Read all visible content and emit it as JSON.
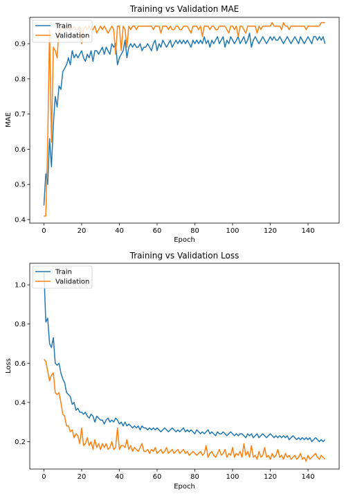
{
  "chart_data": [
    {
      "type": "line",
      "title": "Training vs Validation MAE",
      "xlabel": "Epoch",
      "ylabel": "MAE",
      "xlim": [
        -7.5,
        156.5
      ],
      "ylim": [
        0.39,
        0.975
      ],
      "xticks": [
        0,
        20,
        40,
        60,
        80,
        100,
        120,
        140
      ],
      "yticks": [
        0.4,
        0.5,
        0.6,
        0.7,
        0.8,
        0.9
      ],
      "ytick_labels": [
        "0.4",
        "0.5",
        "0.6",
        "0.7",
        "0.8",
        "0.9"
      ],
      "legend": "upper-left",
      "grid": false,
      "series": [
        {
          "name": "Train",
          "color": "#1f77b4",
          "values": [
            0.44,
            0.53,
            0.5,
            0.63,
            0.55,
            0.67,
            0.75,
            0.72,
            0.78,
            0.77,
            0.82,
            0.83,
            0.84,
            0.86,
            0.84,
            0.88,
            0.86,
            0.87,
            0.86,
            0.87,
            0.88,
            0.86,
            0.85,
            0.87,
            0.86,
            0.88,
            0.85,
            0.88,
            0.88,
            0.87,
            0.88,
            0.89,
            0.87,
            0.89,
            0.88,
            0.87,
            0.9,
            0.89,
            0.9,
            0.84,
            0.86,
            0.87,
            0.88,
            0.91,
            0.86,
            0.89,
            0.9,
            0.89,
            0.9,
            0.89,
            0.89,
            0.9,
            0.88,
            0.89,
            0.89,
            0.9,
            0.89,
            0.88,
            0.9,
            0.91,
            0.88,
            0.9,
            0.89,
            0.91,
            0.9,
            0.89,
            0.9,
            0.91,
            0.89,
            0.9,
            0.91,
            0.9,
            0.91,
            0.9,
            0.91,
            0.9,
            0.91,
            0.9,
            0.89,
            0.91,
            0.9,
            0.91,
            0.9,
            0.91,
            0.9,
            0.92,
            0.9,
            0.91,
            0.89,
            0.91,
            0.9,
            0.91,
            0.92,
            0.9,
            0.91,
            0.92,
            0.89,
            0.91,
            0.9,
            0.92,
            0.91,
            0.9,
            0.91,
            0.92,
            0.9,
            0.91,
            0.92,
            0.9,
            0.91,
            0.93,
            0.89,
            0.91,
            0.92,
            0.91,
            0.9,
            0.91,
            0.92,
            0.91,
            0.9,
            0.91,
            0.92,
            0.91,
            0.92,
            0.91,
            0.91,
            0.92,
            0.91,
            0.9,
            0.91,
            0.92,
            0.91,
            0.9,
            0.91,
            0.92,
            0.91,
            0.9,
            0.92,
            0.91,
            0.9,
            0.91,
            0.92,
            0.91,
            0.9,
            0.92,
            0.92,
            0.91,
            0.92,
            0.91,
            0.92,
            0.9
          ]
        },
        {
          "name": "Validation",
          "color": "#ff7f0e",
          "values": [
            0.41,
            0.41,
            0.62,
            0.94,
            0.62,
            0.89,
            0.88,
            0.86,
            0.94,
            0.94,
            0.95,
            0.94,
            0.94,
            0.95,
            0.94,
            0.94,
            0.95,
            0.94,
            0.94,
            0.95,
            0.9,
            0.94,
            0.95,
            0.94,
            0.95,
            0.94,
            0.94,
            0.95,
            0.93,
            0.94,
            0.95,
            0.94,
            0.95,
            0.94,
            0.93,
            0.94,
            0.95,
            0.94,
            0.87,
            0.95,
            0.95,
            0.88,
            0.95,
            0.94,
            0.89,
            0.95,
            0.94,
            0.95,
            0.95,
            0.94,
            0.95,
            0.95,
            0.95,
            0.95,
            0.95,
            0.95,
            0.95,
            0.95,
            0.94,
            0.95,
            0.95,
            0.95,
            0.93,
            0.95,
            0.95,
            0.95,
            0.94,
            0.95,
            0.94,
            0.94,
            0.95,
            0.95,
            0.94,
            0.94,
            0.95,
            0.95,
            0.95,
            0.94,
            0.93,
            0.95,
            0.95,
            0.95,
            0.94,
            0.95,
            0.92,
            0.95,
            0.95,
            0.95,
            0.94,
            0.95,
            0.95,
            0.94,
            0.94,
            0.95,
            0.95,
            0.95,
            0.95,
            0.94,
            0.93,
            0.95,
            0.95,
            0.94,
            0.95,
            0.92,
            0.95,
            0.95,
            0.94,
            0.93,
            0.95,
            0.95,
            0.95,
            0.95,
            0.95,
            0.93,
            0.95,
            0.94,
            0.95,
            0.95,
            0.95,
            0.95,
            0.95,
            0.96,
            0.95,
            0.95,
            0.95,
            0.95,
            0.94,
            0.96,
            0.95,
            0.95,
            0.94,
            0.95,
            0.95,
            0.95,
            0.95,
            0.95,
            0.95,
            0.95,
            0.95,
            0.94,
            0.95,
            0.95,
            0.95,
            0.95,
            0.95,
            0.95,
            0.95,
            0.96,
            0.96,
            0.96
          ]
        }
      ]
    },
    {
      "type": "line",
      "title": "Training vs Validation Loss",
      "xlabel": "Epoch",
      "ylabel": "Loss",
      "xlim": [
        -7.5,
        156.5
      ],
      "ylim": [
        0.06,
        1.11
      ],
      "xticks": [
        0,
        20,
        40,
        60,
        80,
        100,
        120,
        140
      ],
      "yticks": [
        0.2,
        0.4,
        0.6,
        0.8,
        1.0
      ],
      "ytick_labels": [
        "0.2",
        "0.4",
        "0.6",
        "0.8",
        "1.0"
      ],
      "legend": "upper-left",
      "grid": false,
      "series": [
        {
          "name": "Train",
          "color": "#1f77b4",
          "values": [
            1.07,
            0.81,
            0.83,
            0.7,
            0.68,
            0.73,
            0.6,
            0.59,
            0.6,
            0.55,
            0.52,
            0.5,
            0.45,
            0.44,
            0.43,
            0.39,
            0.4,
            0.36,
            0.37,
            0.35,
            0.35,
            0.34,
            0.35,
            0.33,
            0.32,
            0.34,
            0.33,
            0.3,
            0.33,
            0.32,
            0.31,
            0.31,
            0.29,
            0.31,
            0.32,
            0.3,
            0.31,
            0.3,
            0.32,
            0.31,
            0.29,
            0.3,
            0.28,
            0.3,
            0.28,
            0.29,
            0.28,
            0.27,
            0.28,
            0.27,
            0.28,
            0.26,
            0.28,
            0.27,
            0.27,
            0.26,
            0.27,
            0.26,
            0.27,
            0.26,
            0.27,
            0.26,
            0.25,
            0.26,
            0.27,
            0.26,
            0.25,
            0.26,
            0.27,
            0.26,
            0.25,
            0.26,
            0.25,
            0.26,
            0.27,
            0.25,
            0.26,
            0.25,
            0.26,
            0.25,
            0.24,
            0.26,
            0.25,
            0.24,
            0.25,
            0.24,
            0.25,
            0.26,
            0.24,
            0.25,
            0.24,
            0.23,
            0.25,
            0.24,
            0.24,
            0.25,
            0.24,
            0.23,
            0.24,
            0.25,
            0.24,
            0.23,
            0.24,
            0.23,
            0.24,
            0.24,
            0.23,
            0.22,
            0.24,
            0.23,
            0.24,
            0.22,
            0.23,
            0.24,
            0.22,
            0.23,
            0.24,
            0.23,
            0.22,
            0.23,
            0.24,
            0.23,
            0.22,
            0.23,
            0.22,
            0.23,
            0.22,
            0.23,
            0.22,
            0.23,
            0.21,
            0.22,
            0.23,
            0.22,
            0.21,
            0.22,
            0.21,
            0.22,
            0.21,
            0.22,
            0.21,
            0.22,
            0.2,
            0.21,
            0.22,
            0.21,
            0.2,
            0.21,
            0.2,
            0.21
          ]
        },
        {
          "name": "Validation",
          "color": "#ff7f0e",
          "values": [
            0.62,
            0.61,
            0.56,
            0.51,
            0.54,
            0.55,
            0.45,
            0.44,
            0.45,
            0.4,
            0.34,
            0.33,
            0.28,
            0.28,
            0.25,
            0.26,
            0.22,
            0.24,
            0.23,
            0.19,
            0.27,
            0.18,
            0.19,
            0.22,
            0.18,
            0.2,
            0.16,
            0.21,
            0.17,
            0.19,
            0.16,
            0.19,
            0.17,
            0.19,
            0.16,
            0.17,
            0.2,
            0.16,
            0.17,
            0.27,
            0.16,
            0.18,
            0.18,
            0.17,
            0.21,
            0.16,
            0.18,
            0.15,
            0.17,
            0.16,
            0.15,
            0.17,
            0.19,
            0.15,
            0.15,
            0.16,
            0.14,
            0.16,
            0.15,
            0.17,
            0.14,
            0.15,
            0.16,
            0.14,
            0.15,
            0.17,
            0.14,
            0.15,
            0.16,
            0.14,
            0.15,
            0.16,
            0.14,
            0.15,
            0.16,
            0.14,
            0.15,
            0.13,
            0.14,
            0.15,
            0.14,
            0.13,
            0.14,
            0.15,
            0.13,
            0.14,
            0.18,
            0.12,
            0.14,
            0.15,
            0.13,
            0.12,
            0.14,
            0.16,
            0.13,
            0.14,
            0.16,
            0.12,
            0.14,
            0.13,
            0.17,
            0.12,
            0.14,
            0.13,
            0.15,
            0.12,
            0.19,
            0.13,
            0.15,
            0.12,
            0.18,
            0.12,
            0.13,
            0.11,
            0.15,
            0.12,
            0.13,
            0.17,
            0.12,
            0.13,
            0.11,
            0.14,
            0.12,
            0.13,
            0.16,
            0.12,
            0.13,
            0.11,
            0.14,
            0.12,
            0.13,
            0.11,
            0.12,
            0.13,
            0.11,
            0.12,
            0.14,
            0.11,
            0.12,
            0.1,
            0.13,
            0.11,
            0.12,
            0.13,
            0.14,
            0.12,
            0.11,
            0.13,
            0.12,
            0.11
          ]
        }
      ]
    }
  ]
}
